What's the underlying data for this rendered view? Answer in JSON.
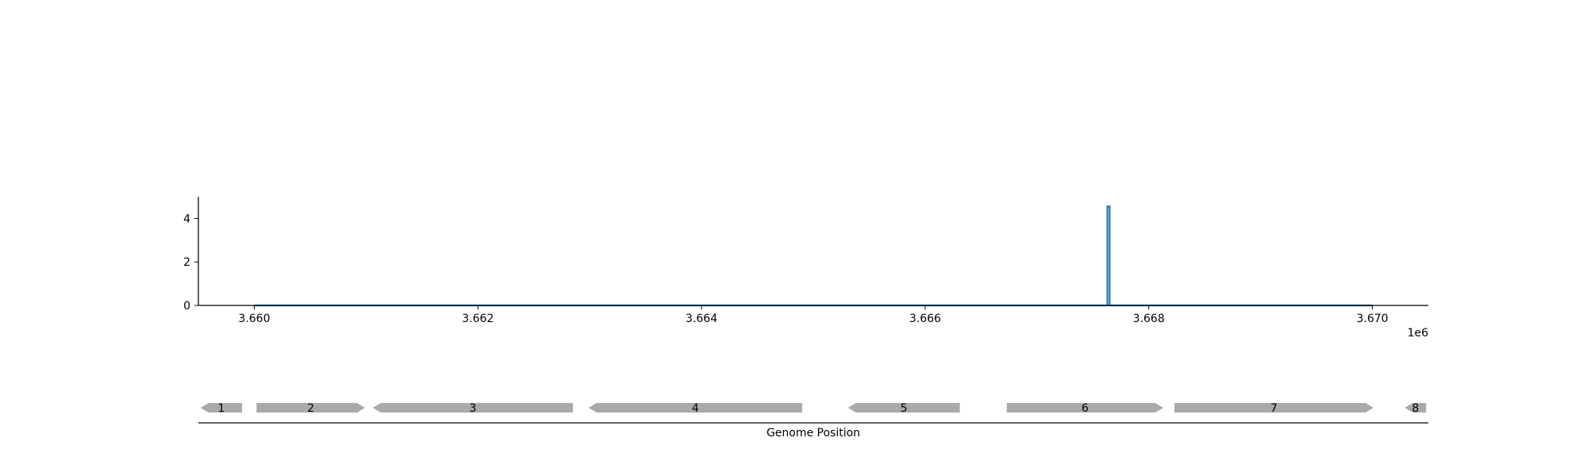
{
  "chart_data": {
    "type": "line",
    "title": "",
    "xlabel": "",
    "ylabel": "",
    "x_offset_label": "1e6",
    "xlim": [
      3659500,
      3670500
    ],
    "ylim": [
      0,
      5
    ],
    "x_ticks": [
      3660000,
      3662000,
      3664000,
      3666000,
      3668000,
      3670000
    ],
    "x_tick_labels": [
      "3.660",
      "3.662",
      "3.664",
      "3.666",
      "3.668",
      "3.670"
    ],
    "y_ticks": [
      0,
      2,
      4
    ],
    "y_tick_labels": [
      "0",
      "2",
      "4"
    ],
    "line_color": "#1f77b4",
    "series": [
      {
        "x": [
          3660000,
          3667630,
          3667630,
          3667650,
          3667650,
          3670000
        ],
        "y": [
          0,
          0,
          4.55,
          4.55,
          0,
          0
        ]
      }
    ],
    "gene_track": {
      "xlabel": "Genome Position",
      "color": "#a9a9a9",
      "genes": [
        {
          "label": "1",
          "start": 3659520,
          "end": 3659890,
          "strand": "-"
        },
        {
          "label": "2",
          "start": 3660020,
          "end": 3660990,
          "strand": "+"
        },
        {
          "label": "3",
          "start": 3661060,
          "end": 3662850,
          "strand": "-"
        },
        {
          "label": "4",
          "start": 3662990,
          "end": 3664900,
          "strand": "-"
        },
        {
          "label": "5",
          "start": 3665310,
          "end": 3666310,
          "strand": "-"
        },
        {
          "label": "6",
          "start": 3666730,
          "end": 3668130,
          "strand": "+"
        },
        {
          "label": "7",
          "start": 3668230,
          "end": 3670010,
          "strand": "+"
        },
        {
          "label": "8",
          "start": 3670290,
          "end": 3670480,
          "strand": "-"
        }
      ]
    }
  }
}
